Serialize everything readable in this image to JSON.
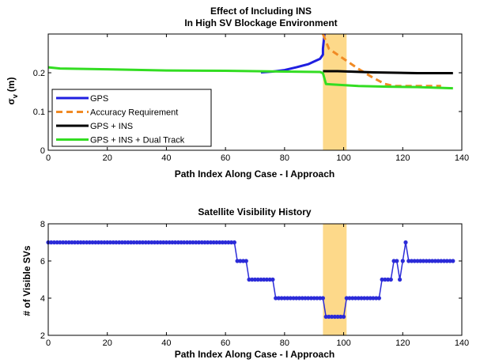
{
  "chart_data": [
    {
      "type": "line",
      "title": "Effect of Including INS",
      "subtitle": "In High SV Blockage Environment",
      "xlabel": "Path Index Along Case - I Approach",
      "ylabel": "σ",
      "ylabel_sub": "v",
      "ylabel_unit": "(m)",
      "xlim": [
        0,
        140
      ],
      "ylim": [
        0,
        0.3
      ],
      "xticks": [
        0,
        20,
        40,
        60,
        80,
        100,
        120,
        140
      ],
      "yticks": [
        0,
        0.1,
        0.2
      ],
      "ytick_labels": [
        "0",
        "0.1",
        "0.2"
      ],
      "highlight": {
        "x_from": 93,
        "x_to": 101,
        "color": "#fdd98a"
      },
      "legend_location": "lower-left",
      "series": [
        {
          "name": "GPS",
          "color": "#1f1fe0",
          "width": 3,
          "dash": "",
          "x": [
            72,
            76,
            80,
            84,
            88,
            90,
            92,
            93,
            93,
            93.5
          ],
          "y": [
            0.201,
            0.203,
            0.207,
            0.214,
            0.222,
            0.229,
            0.236,
            0.247,
            0.262,
            0.3
          ]
        },
        {
          "name": "Accuracy Requirement",
          "color": "#f08a24",
          "width": 3,
          "dash": "8,5",
          "x": [
            93,
            95,
            100,
            105,
            110,
            114,
            117,
            125,
            133
          ],
          "y": [
            0.3,
            0.262,
            0.236,
            0.21,
            0.187,
            0.171,
            0.166,
            0.166,
            0.166
          ]
        },
        {
          "name": "GPS + INS",
          "color": "#000000",
          "width": 3,
          "dash": "",
          "x": [
            93,
            98,
            110,
            125,
            137
          ],
          "y": [
            0.204,
            0.204,
            0.201,
            0.199,
            0.199
          ]
        },
        {
          "name": "GPS + INS + Dual Track",
          "color": "#33dd22",
          "width": 3,
          "dash": "",
          "x": [
            0,
            4,
            20,
            40,
            60,
            80,
            92,
            93,
            94,
            96,
            105,
            115,
            125,
            137
          ],
          "y": [
            0.214,
            0.211,
            0.209,
            0.206,
            0.205,
            0.203,
            0.202,
            0.199,
            0.171,
            0.17,
            0.166,
            0.164,
            0.163,
            0.16
          ]
        }
      ]
    },
    {
      "type": "scatter",
      "title": "Satellite Visibility History",
      "xlabel": "Path Index Along Case - I Approach",
      "ylabel": "# of Visible SVs",
      "xlim": [
        0,
        140
      ],
      "ylim": [
        2,
        8
      ],
      "xticks": [
        0,
        20,
        40,
        60,
        80,
        100,
        120,
        140
      ],
      "yticks": [
        2,
        4,
        6,
        8
      ],
      "highlight": {
        "x_from": 93,
        "x_to": 101,
        "color": "#fdd98a"
      },
      "marker_color": "#2b2bd8",
      "steps": [
        {
          "x_from": 0,
          "x_to": 63,
          "y": 7
        },
        {
          "x_from": 64,
          "x_to": 67,
          "y": 6
        },
        {
          "x_from": 68,
          "x_to": 76,
          "y": 5
        },
        {
          "x_from": 77,
          "x_to": 93,
          "y": 4
        },
        {
          "x_from": 94,
          "x_to": 100,
          "y": 3
        },
        {
          "x_from": 101,
          "x_to": 112,
          "y": 4
        },
        {
          "x_from": 113,
          "x_to": 116,
          "y": 5
        },
        {
          "x_from": 117,
          "x_to": 118,
          "y": 6
        },
        {
          "x_from": 119,
          "x_to": 119,
          "y": 5
        },
        {
          "x_from": 120,
          "x_to": 120,
          "y": 6
        },
        {
          "x_from": 121,
          "x_to": 121,
          "y": 7
        },
        {
          "x_from": 122,
          "x_to": 137,
          "y": 6
        }
      ]
    }
  ]
}
